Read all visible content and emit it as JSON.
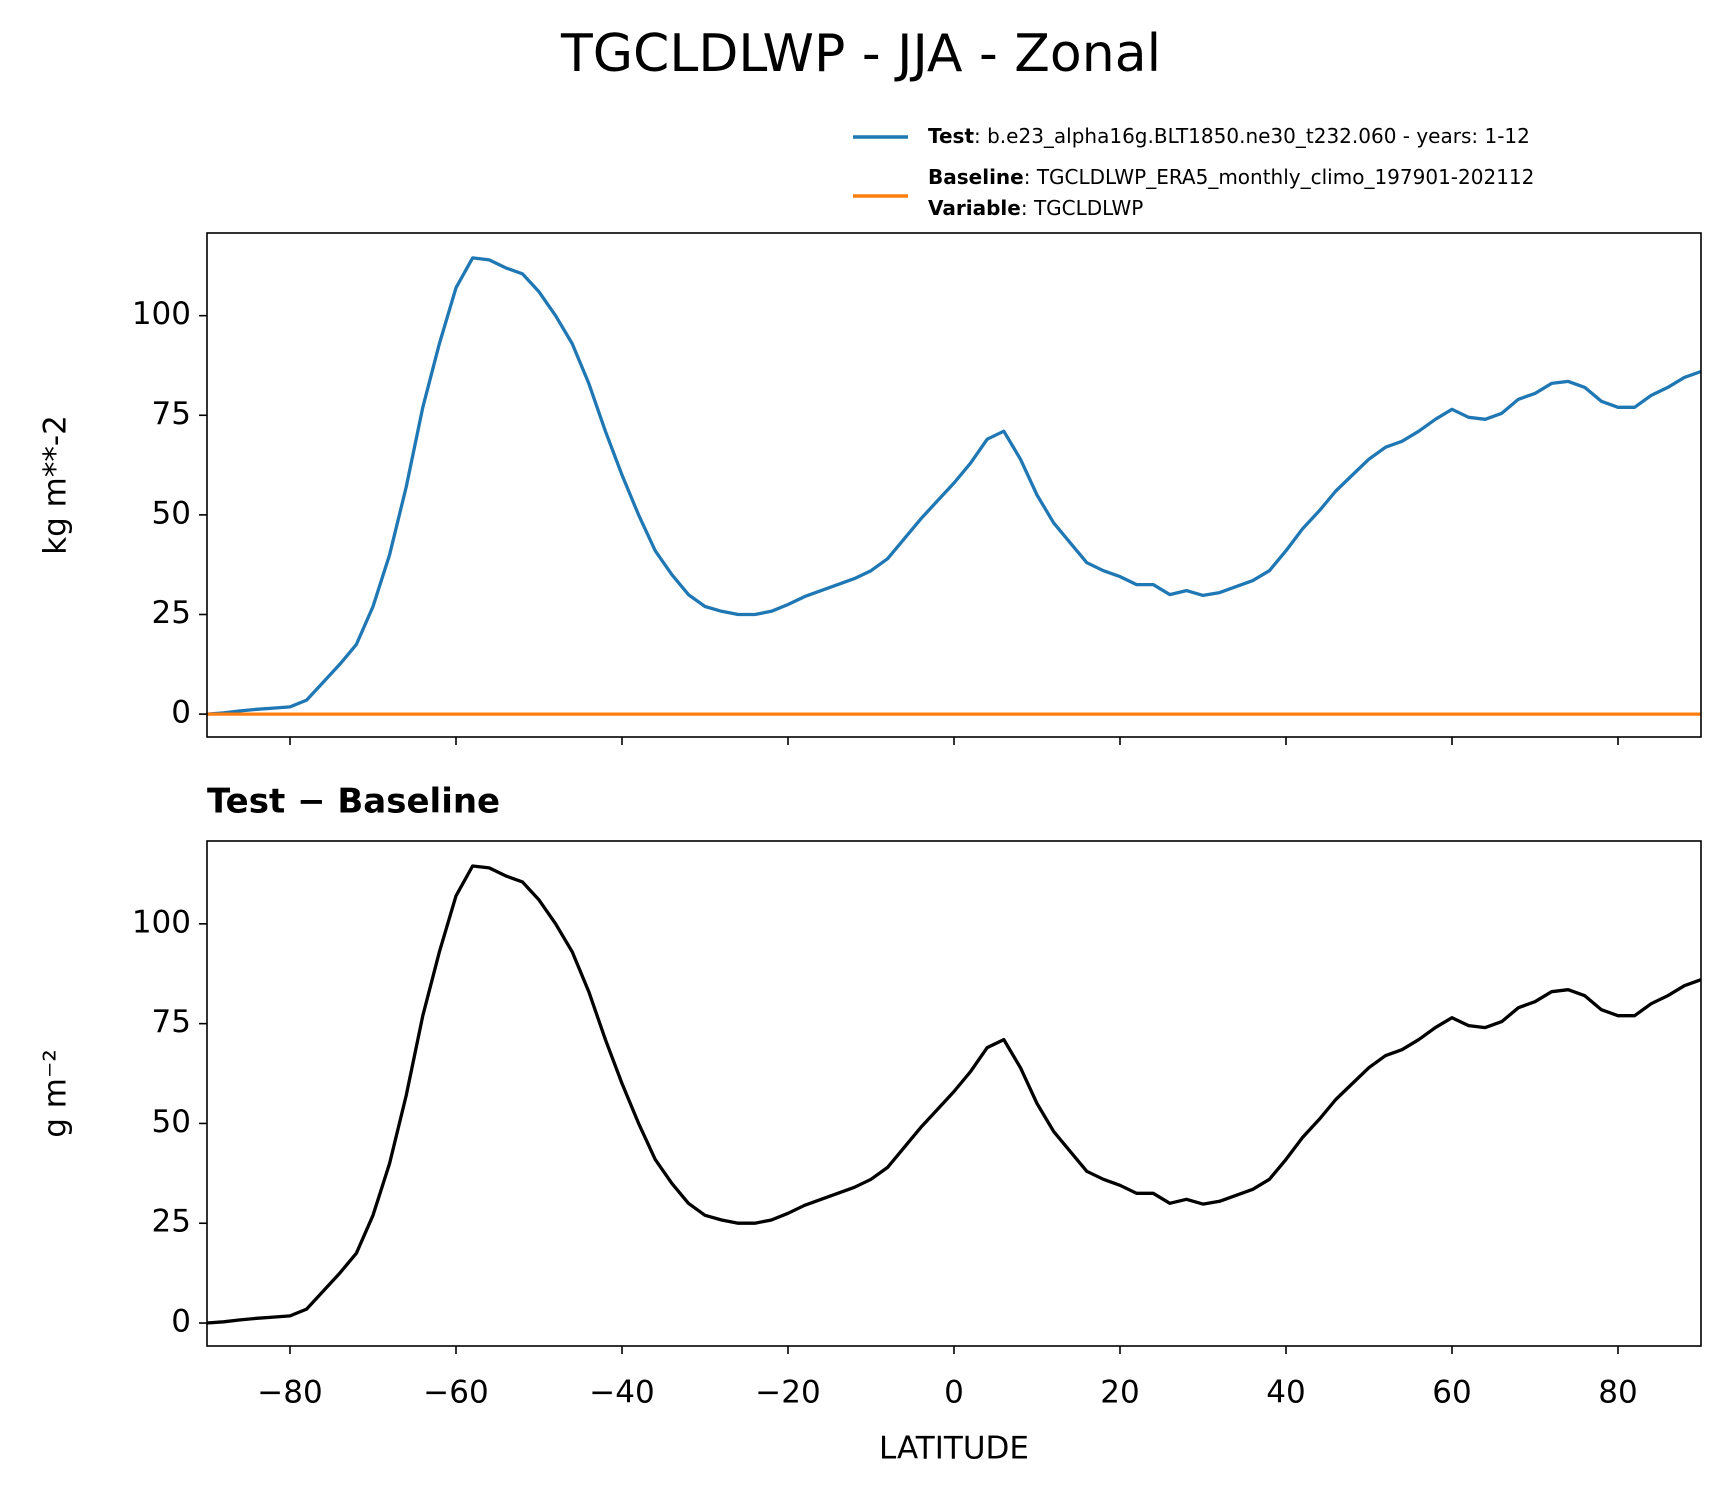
{
  "title": "TGCLDLWP - JJA - Zonal",
  "legend_notes": [
    {
      "name": "Variable",
      "description": ": TGCLDLWP"
    }
  ],
  "chart_data": [
    {
      "type": "line",
      "ylabel": "kg m**-2",
      "xlim": [
        -90,
        90
      ],
      "ylim": [
        -5.75,
        120.75
      ],
      "xticks": [
        -80,
        -60,
        -40,
        -20,
        0,
        20,
        40,
        60,
        80
      ],
      "yticks": [
        0,
        25,
        50,
        75,
        100
      ],
      "x": [
        -90,
        -88,
        -86,
        -84,
        -82,
        -80,
        -78,
        -76,
        -74,
        -72,
        -70,
        -68,
        -66,
        -64,
        -62,
        -60,
        -58,
        -56,
        -54,
        -52,
        -50,
        -48,
        -46,
        -44,
        -42,
        -40,
        -38,
        -36,
        -34,
        -32,
        -30,
        -28,
        -26,
        -24,
        -22,
        -20,
        -18,
        -16,
        -14,
        -12,
        -10,
        -8,
        -6,
        -4,
        -2,
        0,
        2,
        4,
        6,
        8,
        10,
        12,
        14,
        16,
        18,
        20,
        22,
        24,
        26,
        28,
        30,
        32,
        34,
        36,
        38,
        40,
        42,
        44,
        46,
        48,
        50,
        52,
        54,
        56,
        58,
        60,
        62,
        64,
        66,
        68,
        70,
        72,
        74,
        76,
        78,
        80,
        82,
        84,
        86,
        88,
        90
      ],
      "series": [
        {
          "name": "Test",
          "description": ": b.e23_alpha16g.BLT1850.ne30_t232.060 - years: 1-12",
          "color": "#1f77b4",
          "values": [
            0,
            0.3,
            0.8,
            1.2,
            1.5,
            1.8,
            3.5,
            8,
            12.5,
            17.5,
            27,
            40,
            57,
            77,
            93,
            107,
            114.5,
            114,
            112,
            110.5,
            106,
            100,
            93,
            83,
            71,
            60,
            50,
            41,
            35,
            30,
            27,
            25.8,
            25,
            25,
            25.8,
            27.5,
            29.5,
            31,
            32.5,
            34,
            36,
            39,
            44,
            49,
            53.5,
            58,
            63,
            69,
            71,
            64,
            55,
            48,
            43,
            38,
            36,
            34.5,
            32.5,
            32.5,
            30,
            31,
            29.8,
            30.5,
            32,
            33.5,
            36,
            41,
            46.5,
            51,
            56,
            60,
            64,
            67,
            68.5,
            71,
            74,
            76.5,
            74.5,
            74,
            75.5,
            79,
            80.5,
            83,
            83.5,
            82,
            78.5,
            77,
            77,
            80,
            82,
            84.5,
            86
          ]
        },
        {
          "name": "Baseline",
          "description": ": TGCLDLWP_ERA5_monthly_climo_197901-202112",
          "color": "#ff7f0e",
          "values": [
            0,
            0,
            0,
            0,
            0,
            0,
            0,
            0,
            0,
            0,
            0,
            0,
            0,
            0,
            0,
            0,
            0,
            0,
            0,
            0,
            0,
            0,
            0,
            0,
            0,
            0,
            0,
            0,
            0,
            0,
            0,
            0,
            0,
            0,
            0,
            0,
            0,
            0,
            0,
            0,
            0,
            0,
            0,
            0,
            0,
            0,
            0,
            0,
            0,
            0,
            0,
            0,
            0,
            0,
            0,
            0,
            0,
            0,
            0,
            0,
            0,
            0,
            0,
            0,
            0,
            0,
            0,
            0,
            0,
            0,
            0,
            0,
            0,
            0,
            0,
            0,
            0,
            0,
            0,
            0,
            0,
            0,
            0,
            0,
            0,
            0,
            0,
            0,
            0,
            0,
            0
          ]
        }
      ]
    },
    {
      "type": "line",
      "title": "Test − Baseline",
      "ylabel": "g m⁻²",
      "xlabel": "LATITUDE",
      "xlim": [
        -90,
        90
      ],
      "ylim": [
        -5.75,
        120.75
      ],
      "xticks": [
        {
          "value": -80,
          "label": "−80"
        },
        {
          "value": -60,
          "label": "−60"
        },
        {
          "value": -40,
          "label": "−40"
        },
        {
          "value": -20,
          "label": "−20"
        },
        0,
        20,
        40,
        60,
        80
      ],
      "yticks": [
        0,
        25,
        50,
        75,
        100
      ],
      "x": [
        -90,
        -88,
        -86,
        -84,
        -82,
        -80,
        -78,
        -76,
        -74,
        -72,
        -70,
        -68,
        -66,
        -64,
        -62,
        -60,
        -58,
        -56,
        -54,
        -52,
        -50,
        -48,
        -46,
        -44,
        -42,
        -40,
        -38,
        -36,
        -34,
        -32,
        -30,
        -28,
        -26,
        -24,
        -22,
        -20,
        -18,
        -16,
        -14,
        -12,
        -10,
        -8,
        -6,
        -4,
        -2,
        0,
        2,
        4,
        6,
        8,
        10,
        12,
        14,
        16,
        18,
        20,
        22,
        24,
        26,
        28,
        30,
        32,
        34,
        36,
        38,
        40,
        42,
        44,
        46,
        48,
        50,
        52,
        54,
        56,
        58,
        60,
        62,
        64,
        66,
        68,
        70,
        72,
        74,
        76,
        78,
        80,
        82,
        84,
        86,
        88,
        90
      ],
      "series": [
        {
          "color": "#000000",
          "values": [
            0,
            0.3,
            0.8,
            1.2,
            1.5,
            1.8,
            3.5,
            8,
            12.5,
            17.5,
            27,
            40,
            57,
            77,
            93,
            107,
            114.5,
            114,
            112,
            110.5,
            106,
            100,
            93,
            83,
            71,
            60,
            50,
            41,
            35,
            30,
            27,
            25.8,
            25,
            25,
            25.8,
            27.5,
            29.5,
            31,
            32.5,
            34,
            36,
            39,
            44,
            49,
            53.5,
            58,
            63,
            69,
            71,
            64,
            55,
            48,
            43,
            38,
            36,
            34.5,
            32.5,
            32.5,
            30,
            31,
            29.8,
            30.5,
            32,
            33.5,
            36,
            41,
            46.5,
            51,
            56,
            60,
            64,
            67,
            68.5,
            71,
            74,
            76.5,
            74.5,
            74,
            75.5,
            79,
            80.5,
            83,
            83.5,
            82,
            78.5,
            77,
            77,
            80,
            82,
            84.5,
            86
          ]
        }
      ]
    }
  ]
}
